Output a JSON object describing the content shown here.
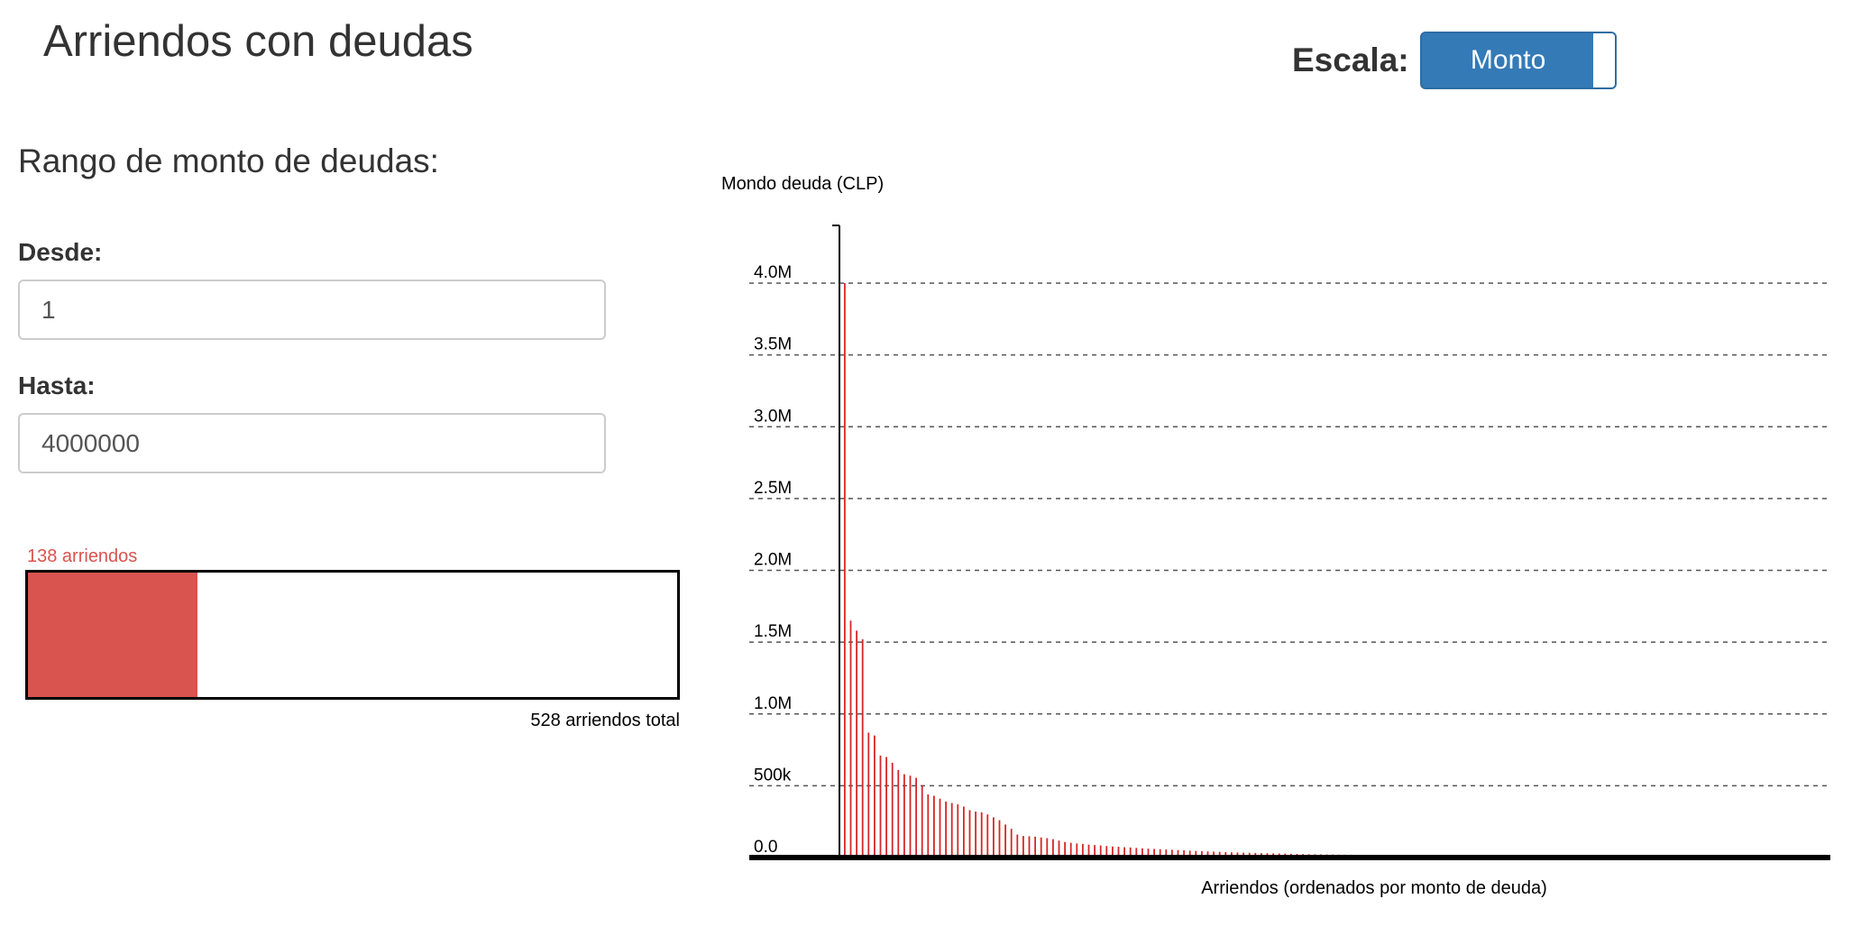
{
  "page": {
    "title": "Arriendos con deudas"
  },
  "scale": {
    "label": "Escala:",
    "toggle_label": "Monto",
    "active_color": "#337ab7"
  },
  "filters": {
    "section_title": "Rango de monto de deudas:",
    "from": {
      "label": "Desde:",
      "value": "1"
    },
    "to": {
      "label": "Hasta:",
      "value": "4000000"
    }
  },
  "summary": {
    "count_label": "138 arriendos",
    "total_label": "528 arriendos total",
    "selected_count": 138,
    "total_count": 528,
    "fill_color": "#d9534f"
  },
  "chart_data": {
    "type": "bar",
    "ylabel": "Mondo deuda (CLP)",
    "xlabel": "Arriendos (ordenados por monto de deuda)",
    "ylim": [
      0,
      4400000
    ],
    "yticks": [
      {
        "value": 0,
        "label": "0.0"
      },
      {
        "value": 500000,
        "label": "500k"
      },
      {
        "value": 1000000,
        "label": "1.0M"
      },
      {
        "value": 1500000,
        "label": "1.5M"
      },
      {
        "value": 2000000,
        "label": "2.0M"
      },
      {
        "value": 2500000,
        "label": "2.5M"
      },
      {
        "value": 3000000,
        "label": "3.0M"
      },
      {
        "value": 3500000,
        "label": "3.5M"
      },
      {
        "value": 4000000,
        "label": "4.0M"
      }
    ],
    "grid": true,
    "color": "#d62728",
    "values": [
      4000000,
      1650000,
      1580000,
      1520000,
      870000,
      850000,
      710000,
      700000,
      660000,
      610000,
      580000,
      570000,
      555000,
      500000,
      440000,
      430000,
      410000,
      390000,
      380000,
      370000,
      355000,
      330000,
      320000,
      315000,
      300000,
      280000,
      260000,
      230000,
      200000,
      160000,
      150000,
      148000,
      145000,
      140000,
      135000,
      128000,
      118000,
      108000,
      103000,
      98000,
      95000,
      90000,
      87000,
      84000,
      80000,
      77000,
      75000,
      72000,
      70000,
      67000,
      64000,
      62000,
      60000,
      58000,
      56000,
      54000,
      52000,
      50000,
      48000,
      46000,
      44000,
      42500,
      41000,
      39500,
      38000,
      36500,
      35000,
      34000,
      33000,
      32000,
      31000,
      30000,
      29000,
      28000,
      27000,
      26000,
      25000,
      24000,
      23000,
      22500,
      22000,
      21500,
      21000,
      20500,
      20000,
      19500,
      19000,
      18500,
      18000,
      17500,
      17000,
      16500,
      16000,
      15500,
      15000,
      14500,
      14000,
      13500,
      13000,
      12500,
      12000,
      11500,
      11000,
      10500,
      10000,
      9500,
      9000,
      8500,
      8000,
      7500,
      7000,
      6500,
      6000,
      5500,
      5000,
      4500,
      4000,
      3500,
      3000,
      2700,
      2400,
      2100,
      1800,
      1500,
      1300,
      1100,
      900,
      700,
      600,
      500,
      400,
      300,
      250,
      200,
      150,
      100,
      50,
      20
    ]
  }
}
